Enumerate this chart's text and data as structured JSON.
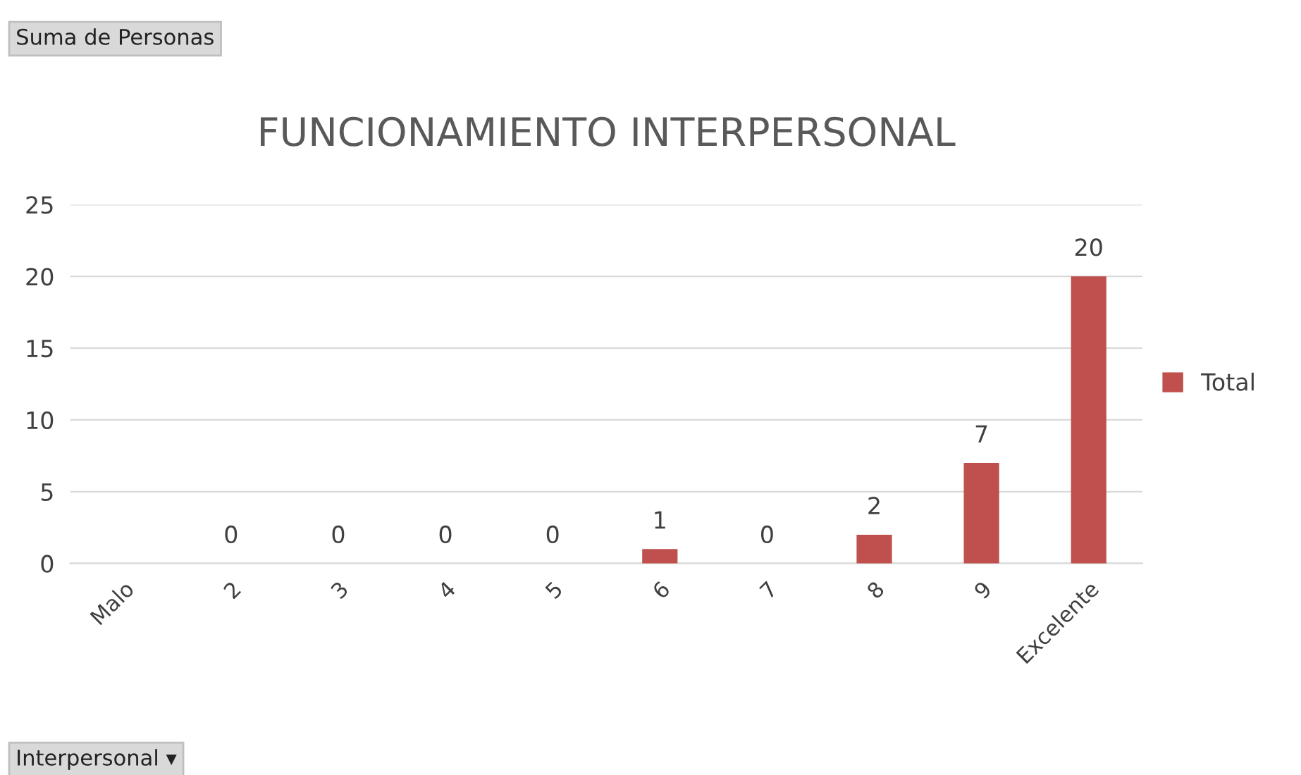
{
  "chart_data": {
    "type": "bar",
    "title": "FUNCIONAMIENTO INTERPERSONAL",
    "categories": [
      "Malo",
      "2",
      "3",
      "4",
      "5",
      "6",
      "7",
      "8",
      "9",
      "Excelente"
    ],
    "series": [
      {
        "name": "Total",
        "color": "#c0504d",
        "values": [
          null,
          0,
          0,
          0,
          0,
          1,
          0,
          2,
          7,
          20
        ]
      }
    ],
    "ylim": [
      0,
      25
    ],
    "yticks": [
      0,
      5,
      10,
      15,
      20,
      25
    ],
    "grid": "y",
    "legend": "right",
    "data_labels": true,
    "annotations": [
      "Suma de Personas",
      "Interpersonal ▾"
    ]
  }
}
